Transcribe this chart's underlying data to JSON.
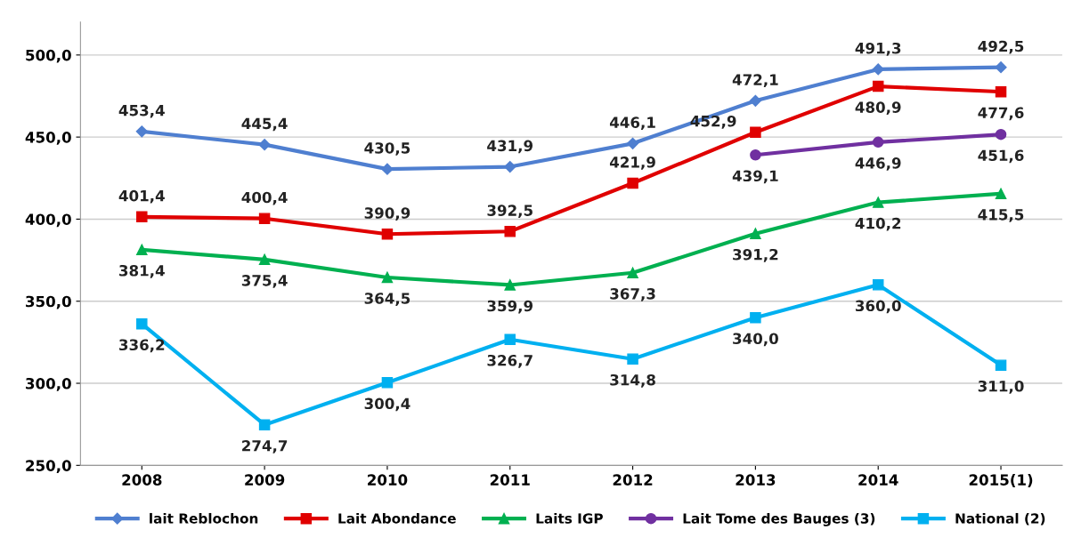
{
  "chart_data": {
    "type": "line",
    "categories": [
      "2008",
      "2009",
      "2010",
      "2011",
      "2012",
      "2013",
      "2014",
      "2015(1)"
    ],
    "series": [
      {
        "name": "lait Reblochon",
        "color": "#4f7fd0",
        "marker": "diamond",
        "values": [
          453.4,
          445.4,
          430.5,
          431.9,
          446.1,
          472.1,
          491.3,
          492.5
        ],
        "value_labels": [
          "453,4",
          "445,4",
          "430,5",
          "431,9",
          "446,1",
          "472,1",
          "491,3",
          "492,5"
        ]
      },
      {
        "name": "Lait Abondance",
        "color": "#e00000",
        "marker": "square",
        "values": [
          401.4,
          400.4,
          390.9,
          392.5,
          421.9,
          452.9,
          480.9,
          477.6
        ],
        "value_labels": [
          "401,4",
          "400,4",
          "390,9",
          "392,5",
          "421,9",
          "452,9",
          "480,9",
          "477,6"
        ]
      },
      {
        "name": "Laits IGP",
        "color": "#00b050",
        "marker": "triangle",
        "values": [
          381.4,
          375.4,
          364.5,
          359.9,
          367.3,
          391.2,
          410.2,
          415.5
        ],
        "value_labels": [
          "381,4",
          "375,4",
          "364,5",
          "359,9",
          "367,3",
          "391,2",
          "410,2",
          "415,5"
        ]
      },
      {
        "name": "Lait Tome des Bauges (3)",
        "color": "#7030a0",
        "marker": "circle",
        "values": [
          null,
          null,
          null,
          null,
          null,
          439.1,
          446.9,
          451.6
        ],
        "value_labels": [
          null,
          null,
          null,
          null,
          null,
          "439,1",
          "446,9",
          "451,6"
        ]
      },
      {
        "name": "National (2)",
        "color": "#00b0f0",
        "marker": "square",
        "values": [
          336.2,
          274.7,
          300.4,
          326.7,
          314.8,
          340.0,
          360.0,
          311.0
        ],
        "value_labels": [
          "336,2",
          "274,7",
          "300,4",
          "326,7",
          "314,8",
          "340,0",
          "360,0",
          "311,0"
        ]
      }
    ],
    "ylim": [
      250,
      520
    ],
    "yticks": [
      {
        "value": 250,
        "label": "250,0"
      },
      {
        "value": 300,
        "label": "300,0"
      },
      {
        "value": 350,
        "label": "350,0"
      },
      {
        "value": 400,
        "label": "400,0"
      },
      {
        "value": 450,
        "label": "450,0"
      },
      {
        "value": 500,
        "label": "500,0"
      }
    ],
    "grid": "y",
    "legend": "bottom",
    "line_style": "solid"
  }
}
